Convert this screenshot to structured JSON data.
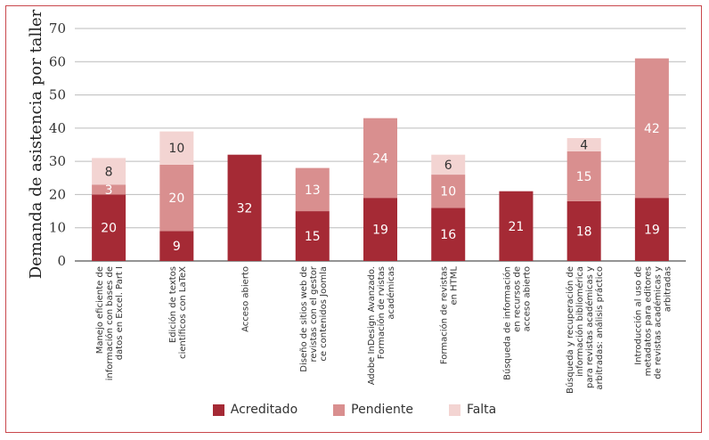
{
  "chart_data": {
    "type": "bar",
    "stacked": true,
    "ylabel": "Demanda de asistencia por taller",
    "xlabel": "",
    "ylim": [
      0,
      70
    ],
    "yticks": [
      0,
      10,
      20,
      30,
      40,
      50,
      60,
      70
    ],
    "grid": true,
    "legend_position": "bottom",
    "categories": [
      [
        "Manejo eficiente de",
        "información con bases de",
        "datos en Excel. Part I"
      ],
      [
        "Edición de textos",
        "científicos con LaTeX"
      ],
      [
        "Acceso abierto"
      ],
      [
        "Diseño de sitios web de",
        "revistas con el gestor",
        "ce contenidos Joomla"
      ],
      [
        "Adobe InDesign Avanzado.",
        "Formación de rvistas",
        "académicas"
      ],
      [
        "Formación de revistas",
        "en HTML"
      ],
      [
        "Búsqueda de información",
        "en recursos de",
        "acceso abierto"
      ],
      [
        "Búsqueda y recuperación de",
        "información bibliomérica",
        "para revistas académicas y",
        "arbitradas: análisis práctico"
      ],
      [
        "Introducción al uso de",
        "metadatos para editores",
        "de revistas académicas y",
        "arbitradas"
      ]
    ],
    "series": [
      {
        "name": "Acreditado",
        "color": "#a52a35",
        "values": [
          20,
          9,
          32,
          15,
          19,
          16,
          21,
          18,
          19
        ]
      },
      {
        "name": "Pendiente",
        "color": "#d98f8f",
        "values": [
          3,
          20,
          0,
          13,
          24,
          10,
          0,
          15,
          42
        ]
      },
      {
        "name": "Falta",
        "color": "#f3d4d2",
        "values": [
          8,
          10,
          0,
          0,
          0,
          6,
          0,
          4,
          0
        ]
      }
    ],
    "colors": {
      "frame": "#c9474c",
      "grid": "#bbbbbb",
      "label_dark_bg": "#ffffff",
      "label_light_bg": "#333333"
    }
  }
}
